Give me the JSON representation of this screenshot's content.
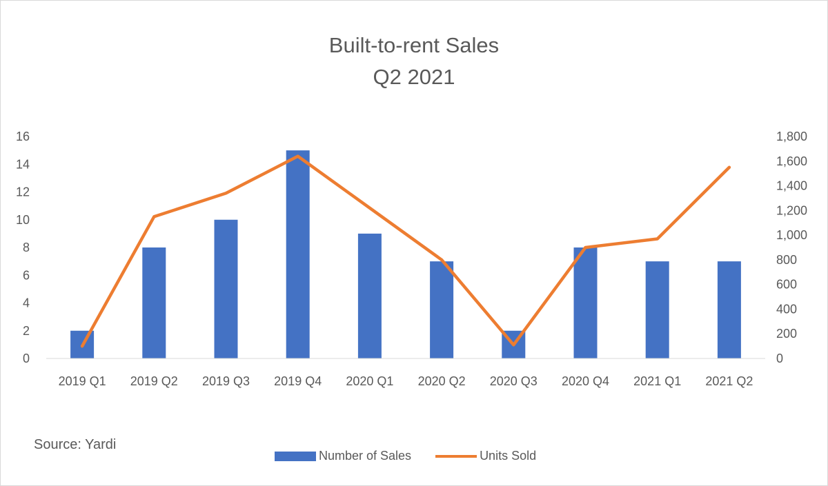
{
  "chart_data": {
    "type": "bar",
    "title": [
      "Built-to-rent Sales",
      "Q2 2021"
    ],
    "categories": [
      "2019 Q1",
      "2019 Q2",
      "2019 Q3",
      "2019 Q4",
      "2020 Q1",
      "2020 Q2",
      "2020 Q3",
      "2020 Q4",
      "2021 Q1",
      "2021 Q2"
    ],
    "series": [
      {
        "name": "Number of Sales",
        "type": "bar",
        "axis": "left",
        "color": "#4472C4",
        "values": [
          2,
          8,
          10,
          15,
          9,
          7,
          2,
          8,
          7,
          7
        ]
      },
      {
        "name": "Units Sold",
        "type": "line",
        "axis": "right",
        "color": "#ED7D31",
        "values": [
          100,
          1150,
          1340,
          1640,
          1220,
          800,
          110,
          900,
          970,
          1550
        ]
      }
    ],
    "y_left": {
      "min": 0,
      "max": 16,
      "ticks": [
        "0",
        "2",
        "4",
        "6",
        "8",
        "10",
        "12",
        "14",
        "16"
      ]
    },
    "y_right": {
      "min": 0,
      "max": 1800,
      "ticks": [
        "0",
        "200",
        "400",
        "600",
        "800",
        "1,000",
        "1,200",
        "1,400",
        "1,600",
        "1,800"
      ]
    },
    "grid": false,
    "legend_position": "bottom",
    "source": "Source: Yardi"
  }
}
